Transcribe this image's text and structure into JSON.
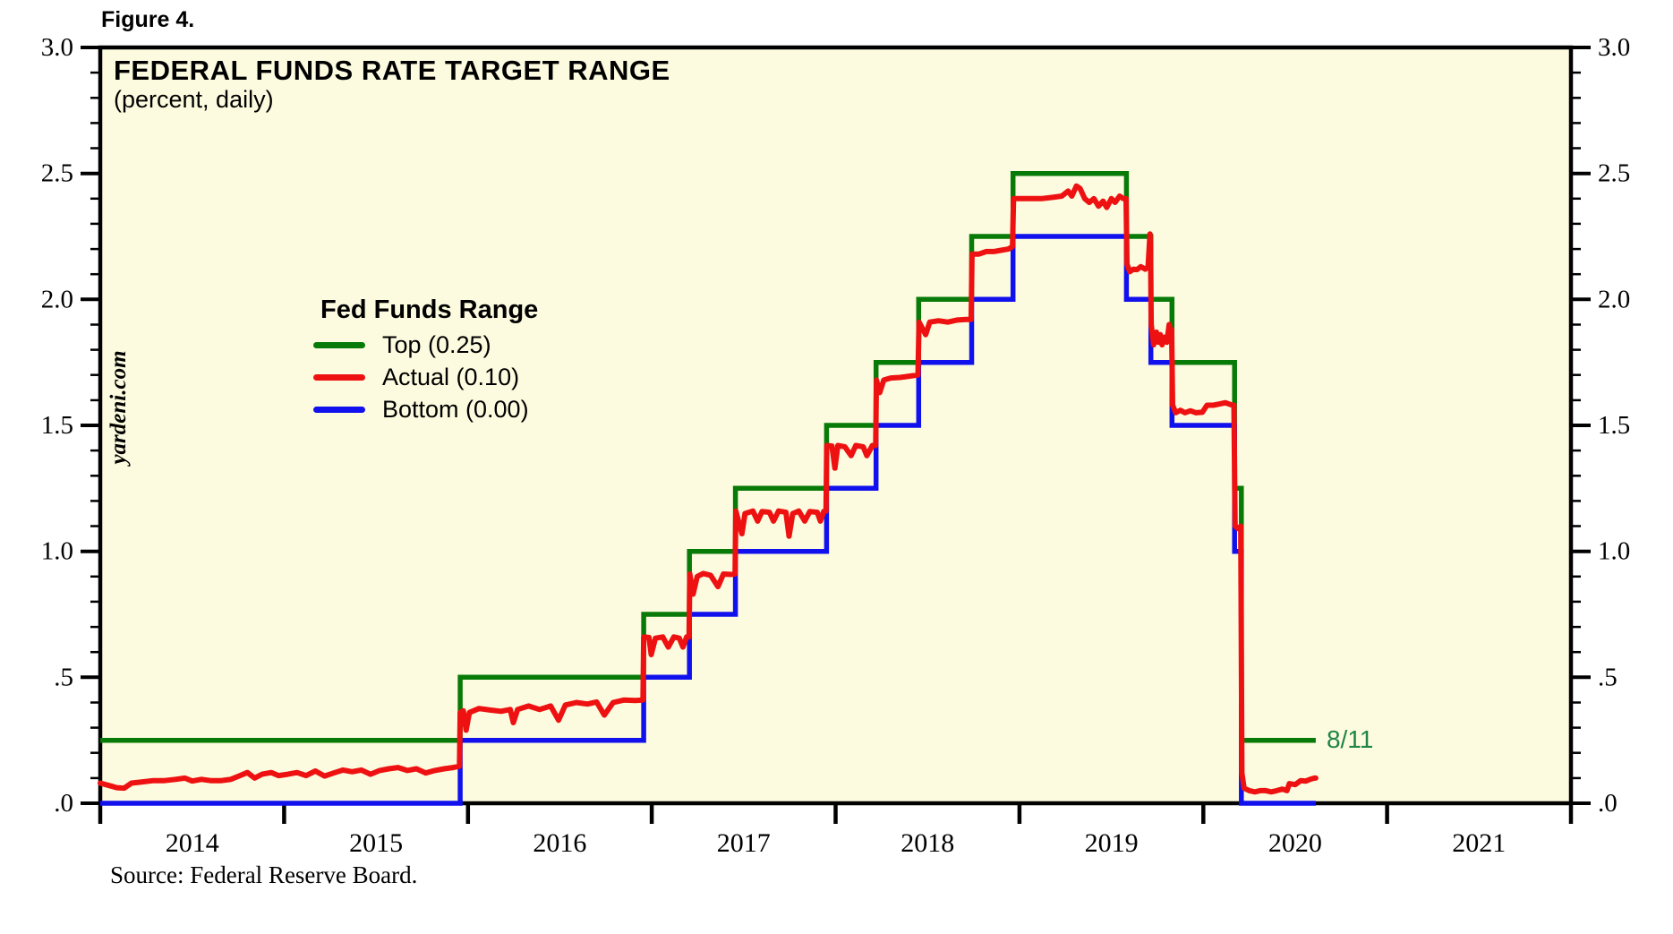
{
  "figure_label": "Figure 4.",
  "chart": {
    "title": "FEDERAL FUNDS RATE TARGET RANGE",
    "subtitle": "(percent, daily)",
    "watermark": "yardeni.com",
    "source": "Source: Federal Reserve Board.",
    "annotation": {
      "text": "8/11",
      "value": 0.25,
      "date": 2020.612,
      "color": "#1E8449"
    },
    "colors": {
      "top_line": "#077A07",
      "actual_line": "#EE1111",
      "bottom_line": "#1111EE",
      "plot_bg": "#FDFBDF",
      "frame": "#000000",
      "page_bg": "#FFFFFF"
    },
    "legend": {
      "title": "Fed Funds Range",
      "items": [
        {
          "label": "Top (0.25)",
          "color": "#077A07"
        },
        {
          "label": "Actual (0.10)",
          "color": "#EE1111"
        },
        {
          "label": "Bottom (0.00)",
          "color": "#1111EE"
        }
      ]
    }
  },
  "chart_data": {
    "type": "line",
    "title": "FEDERAL FUNDS RATE TARGET RANGE",
    "subtitle": "(percent, daily)",
    "xlabel": "",
    "ylabel": "percent",
    "xlim": [
      2014,
      2022
    ],
    "ylim": [
      0,
      3
    ],
    "grid": false,
    "legend_position": "inside-left-upper-middle",
    "x_axis": {
      "boundary_tick_years": [
        2014,
        2015,
        2016,
        2017,
        2018,
        2019,
        2020,
        2021,
        2022
      ],
      "year_labels": [
        {
          "year": 2014,
          "label": "2014"
        },
        {
          "year": 2015,
          "label": "2015"
        },
        {
          "year": 2016,
          "label": "2016"
        },
        {
          "year": 2017,
          "label": "2017"
        },
        {
          "year": 2018,
          "label": "2018"
        },
        {
          "year": 2019,
          "label": "2019"
        },
        {
          "year": 2020,
          "label": "2020"
        },
        {
          "year": 2021,
          "label": "2021"
        }
      ]
    },
    "y_axis": {
      "major_ticks": [
        {
          "value": 3.0,
          "label": "3.0"
        },
        {
          "value": 2.5,
          "label": "2.5"
        },
        {
          "value": 2.0,
          "label": "2.0"
        },
        {
          "value": 1.5,
          "label": "1.5"
        },
        {
          "value": 1.0,
          "label": "1.0"
        },
        {
          "value": 0.5,
          "label": ".5"
        },
        {
          "value": 0.0,
          "label": ".0"
        }
      ],
      "minor_step": 0.1,
      "sides": [
        "left",
        "right"
      ]
    },
    "end_date": 2020.612,
    "series": [
      {
        "name": "Top (0.25)",
        "style": "step",
        "color": "#077A07",
        "points": [
          [
            2014.0,
            0.25
          ],
          [
            2015.958,
            0.5
          ],
          [
            2016.956,
            0.75
          ],
          [
            2017.205,
            1.0
          ],
          [
            2017.455,
            1.25
          ],
          [
            2017.951,
            1.5
          ],
          [
            2018.22,
            1.75
          ],
          [
            2018.452,
            2.0
          ],
          [
            2018.74,
            2.25
          ],
          [
            2018.965,
            2.5
          ],
          [
            2019.582,
            2.25
          ],
          [
            2019.715,
            2.0
          ],
          [
            2019.83,
            1.75
          ],
          [
            2020.17,
            1.25
          ],
          [
            2020.207,
            0.25
          ]
        ]
      },
      {
        "name": "Bottom (0.00)",
        "style": "step",
        "color": "#1111EE",
        "points": [
          [
            2014.0,
            0.0
          ],
          [
            2015.958,
            0.25
          ],
          [
            2016.956,
            0.5
          ],
          [
            2017.205,
            0.75
          ],
          [
            2017.455,
            1.0
          ],
          [
            2017.951,
            1.25
          ],
          [
            2018.22,
            1.5
          ],
          [
            2018.452,
            1.75
          ],
          [
            2018.74,
            2.0
          ],
          [
            2018.965,
            2.25
          ],
          [
            2019.582,
            2.0
          ],
          [
            2019.715,
            1.75
          ],
          [
            2019.83,
            1.5
          ],
          [
            2020.17,
            1.0
          ],
          [
            2020.207,
            0.0
          ]
        ]
      },
      {
        "name": "Actual (0.10)",
        "style": "line",
        "color": "#EE1111",
        "points": [
          [
            2014.0,
            0.08
          ],
          [
            2014.05,
            0.07
          ],
          [
            2014.09,
            0.062
          ],
          [
            2014.13,
            0.06
          ],
          [
            2014.17,
            0.08
          ],
          [
            2014.23,
            0.085
          ],
          [
            2014.29,
            0.09
          ],
          [
            2014.35,
            0.09
          ],
          [
            2014.41,
            0.095
          ],
          [
            2014.46,
            0.1
          ],
          [
            2014.5,
            0.088
          ],
          [
            2014.55,
            0.095
          ],
          [
            2014.6,
            0.09
          ],
          [
            2014.66,
            0.09
          ],
          [
            2014.71,
            0.095
          ],
          [
            2014.76,
            0.11
          ],
          [
            2014.8,
            0.122
          ],
          [
            2014.84,
            0.1
          ],
          [
            2014.88,
            0.115
          ],
          [
            2014.93,
            0.122
          ],
          [
            2014.97,
            0.11
          ],
          [
            2015.02,
            0.115
          ],
          [
            2015.07,
            0.122
          ],
          [
            2015.12,
            0.11
          ],
          [
            2015.17,
            0.128
          ],
          [
            2015.22,
            0.108
          ],
          [
            2015.27,
            0.12
          ],
          [
            2015.32,
            0.132
          ],
          [
            2015.37,
            0.125
          ],
          [
            2015.42,
            0.132
          ],
          [
            2015.47,
            0.115
          ],
          [
            2015.52,
            0.13
          ],
          [
            2015.57,
            0.137
          ],
          [
            2015.62,
            0.142
          ],
          [
            2015.67,
            0.13
          ],
          [
            2015.72,
            0.137
          ],
          [
            2015.77,
            0.12
          ],
          [
            2015.82,
            0.13
          ],
          [
            2015.87,
            0.137
          ],
          [
            2015.92,
            0.142
          ],
          [
            2015.954,
            0.147
          ],
          [
            2015.958,
            0.36
          ],
          [
            2015.975,
            0.367
          ],
          [
            2015.99,
            0.29
          ],
          [
            2016.008,
            0.36
          ],
          [
            2016.06,
            0.376
          ],
          [
            2016.12,
            0.37
          ],
          [
            2016.18,
            0.365
          ],
          [
            2016.23,
            0.372
          ],
          [
            2016.247,
            0.32
          ],
          [
            2016.27,
            0.372
          ],
          [
            2016.33,
            0.386
          ],
          [
            2016.39,
            0.372
          ],
          [
            2016.45,
            0.386
          ],
          [
            2016.493,
            0.33
          ],
          [
            2016.53,
            0.39
          ],
          [
            2016.59,
            0.4
          ],
          [
            2016.65,
            0.394
          ],
          [
            2016.7,
            0.402
          ],
          [
            2016.742,
            0.35
          ],
          [
            2016.79,
            0.4
          ],
          [
            2016.85,
            0.41
          ],
          [
            2016.91,
            0.408
          ],
          [
            2016.952,
            0.41
          ],
          [
            2016.956,
            0.66
          ],
          [
            2016.985,
            0.658
          ],
          [
            2016.997,
            0.59
          ],
          [
            2017.02,
            0.655
          ],
          [
            2017.06,
            0.66
          ],
          [
            2017.09,
            0.62
          ],
          [
            2017.12,
            0.66
          ],
          [
            2017.15,
            0.655
          ],
          [
            2017.17,
            0.62
          ],
          [
            2017.19,
            0.66
          ],
          [
            2017.203,
            0.66
          ],
          [
            2017.207,
            0.91
          ],
          [
            2017.225,
            0.83
          ],
          [
            2017.247,
            0.9
          ],
          [
            2017.28,
            0.912
          ],
          [
            2017.32,
            0.905
          ],
          [
            2017.36,
            0.86
          ],
          [
            2017.39,
            0.91
          ],
          [
            2017.43,
            0.908
          ],
          [
            2017.453,
            0.91
          ],
          [
            2017.457,
            1.16
          ],
          [
            2017.49,
            1.07
          ],
          [
            2017.507,
            1.15
          ],
          [
            2017.55,
            1.16
          ],
          [
            2017.576,
            1.12
          ],
          [
            2017.6,
            1.158
          ],
          [
            2017.64,
            1.155
          ],
          [
            2017.662,
            1.12
          ],
          [
            2017.69,
            1.16
          ],
          [
            2017.73,
            1.155
          ],
          [
            2017.747,
            1.06
          ],
          [
            2017.767,
            1.15
          ],
          [
            2017.8,
            1.16
          ],
          [
            2017.832,
            1.12
          ],
          [
            2017.86,
            1.158
          ],
          [
            2017.9,
            1.155
          ],
          [
            2017.917,
            1.12
          ],
          [
            2017.935,
            1.158
          ],
          [
            2017.948,
            1.16
          ],
          [
            2017.952,
            1.42
          ],
          [
            2017.98,
            1.418
          ],
          [
            2017.996,
            1.33
          ],
          [
            2018.012,
            1.42
          ],
          [
            2018.05,
            1.415
          ],
          [
            2018.084,
            1.38
          ],
          [
            2018.11,
            1.42
          ],
          [
            2018.15,
            1.415
          ],
          [
            2018.17,
            1.38
          ],
          [
            2018.2,
            1.42
          ],
          [
            2018.218,
            1.42
          ],
          [
            2018.222,
            1.68
          ],
          [
            2018.24,
            1.63
          ],
          [
            2018.262,
            1.68
          ],
          [
            2018.3,
            1.688
          ],
          [
            2018.35,
            1.69
          ],
          [
            2018.4,
            1.695
          ],
          [
            2018.448,
            1.7
          ],
          [
            2018.454,
            1.91
          ],
          [
            2018.49,
            1.86
          ],
          [
            2018.512,
            1.91
          ],
          [
            2018.56,
            1.915
          ],
          [
            2018.61,
            1.91
          ],
          [
            2018.66,
            1.918
          ],
          [
            2018.71,
            1.92
          ],
          [
            2018.737,
            1.92
          ],
          [
            2018.742,
            2.18
          ],
          [
            2018.78,
            2.18
          ],
          [
            2018.82,
            2.19
          ],
          [
            2018.86,
            2.19
          ],
          [
            2018.9,
            2.195
          ],
          [
            2018.94,
            2.2
          ],
          [
            2018.962,
            2.21
          ],
          [
            2018.968,
            2.4
          ],
          [
            2019.0,
            2.4
          ],
          [
            2019.06,
            2.4
          ],
          [
            2019.12,
            2.4
          ],
          [
            2019.18,
            2.405
          ],
          [
            2019.23,
            2.41
          ],
          [
            2019.265,
            2.43
          ],
          [
            2019.285,
            2.41
          ],
          [
            2019.31,
            2.45
          ],
          [
            2019.33,
            2.44
          ],
          [
            2019.355,
            2.4
          ],
          [
            2019.38,
            2.385
          ],
          [
            2019.405,
            2.4
          ],
          [
            2019.43,
            2.37
          ],
          [
            2019.455,
            2.39
          ],
          [
            2019.475,
            2.365
          ],
          [
            2019.5,
            2.4
          ],
          [
            2019.52,
            2.385
          ],
          [
            2019.545,
            2.41
          ],
          [
            2019.565,
            2.4
          ],
          [
            2019.58,
            2.4
          ],
          [
            2019.585,
            2.14
          ],
          [
            2019.6,
            2.11
          ],
          [
            2019.62,
            2.12
          ],
          [
            2019.64,
            2.118
          ],
          [
            2019.66,
            2.13
          ],
          [
            2019.685,
            2.12
          ],
          [
            2019.7,
            2.13
          ],
          [
            2019.71,
            2.26
          ],
          [
            2019.7135,
            2.18
          ],
          [
            2019.717,
            1.9
          ],
          [
            2019.73,
            1.82
          ],
          [
            2019.745,
            1.87
          ],
          [
            2019.756,
            1.83
          ],
          [
            2019.766,
            1.86
          ],
          [
            2019.776,
            1.82
          ],
          [
            2019.79,
            1.85
          ],
          [
            2019.802,
            1.83
          ],
          [
            2019.814,
            1.9
          ],
          [
            2019.822,
            1.87
          ],
          [
            2019.828,
            1.88
          ],
          [
            2019.833,
            1.58
          ],
          [
            2019.85,
            1.55
          ],
          [
            2019.875,
            1.56
          ],
          [
            2019.9,
            1.55
          ],
          [
            2019.93,
            1.558
          ],
          [
            2019.96,
            1.55
          ],
          [
            2019.995,
            1.552
          ],
          [
            2020.02,
            1.58
          ],
          [
            2020.055,
            1.58
          ],
          [
            2020.09,
            1.585
          ],
          [
            2020.12,
            1.59
          ],
          [
            2020.15,
            1.582
          ],
          [
            2020.167,
            1.58
          ],
          [
            2020.173,
            1.1
          ],
          [
            2020.19,
            1.09
          ],
          [
            2020.204,
            1.1
          ],
          [
            2020.21,
            0.12
          ],
          [
            2020.222,
            0.06
          ],
          [
            2020.25,
            0.05
          ],
          [
            2020.28,
            0.045
          ],
          [
            2020.31,
            0.05
          ],
          [
            2020.34,
            0.05
          ],
          [
            2020.37,
            0.045
          ],
          [
            2020.4,
            0.05
          ],
          [
            2020.43,
            0.056
          ],
          [
            2020.455,
            0.05
          ],
          [
            2020.468,
            0.078
          ],
          [
            2020.5,
            0.074
          ],
          [
            2020.53,
            0.09
          ],
          [
            2020.558,
            0.088
          ],
          [
            2020.585,
            0.096
          ],
          [
            2020.605,
            0.1
          ],
          [
            2020.612,
            0.1
          ]
        ]
      }
    ]
  }
}
